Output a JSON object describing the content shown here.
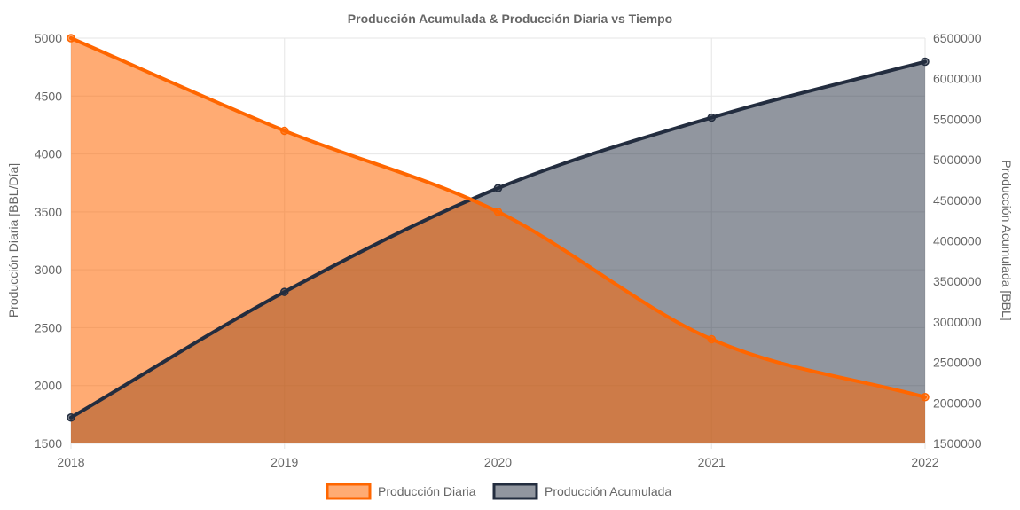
{
  "chart_data": {
    "type": "area",
    "title": "Producción Acumulada & Producción Diaria vs Tiempo",
    "categories": [
      "2018",
      "2019",
      "2020",
      "2021",
      "2022"
    ],
    "y_left": {
      "label": "Producción Diaria [BBL/Día]",
      "min": 1500,
      "max": 5000,
      "ticks": [
        1500,
        2000,
        2500,
        3000,
        3500,
        4000,
        4500,
        5000
      ]
    },
    "y_right": {
      "label": "Producción Acumulada [BBL]",
      "min": 1500000,
      "max": 6500000,
      "ticks": [
        1500000,
        2000000,
        2500000,
        3000000,
        3500000,
        4000000,
        4500000,
        5000000,
        5500000,
        6000000,
        6500000
      ]
    },
    "series": [
      {
        "name": "Producción Diaria",
        "axis": "left",
        "values": [
          5000,
          4200,
          3500,
          2400,
          1900
        ],
        "line_color": "#ff6600",
        "fill_color": "#ff6600",
        "fill_opacity": 0.55
      },
      {
        "name": "Producción Acumulada",
        "axis": "right",
        "values": [
          1820000,
          3370000,
          4650000,
          5520000,
          6210000
        ],
        "line_color": "#232d3f",
        "fill_color": "#232d3f",
        "fill_opacity": 0.5
      }
    ],
    "grid": true,
    "legend_position": "bottom"
  }
}
